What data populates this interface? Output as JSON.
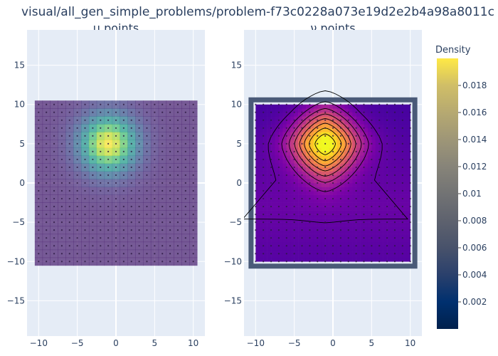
{
  "figure_title": "visual/all_gen_simple_problems/problem-f73c0228a073e19d2e2b4a98a8011c",
  "chart_data": [
    {
      "type": "heatmap",
      "title": "μ points",
      "xlim": [
        -11.5,
        11.5
      ],
      "ylim": [
        -19.5,
        19.5
      ],
      "xticks": [
        -10,
        -5,
        0,
        5,
        10
      ],
      "yticks": [
        -15,
        -10,
        -5,
        0,
        5,
        10,
        15
      ],
      "grid": true,
      "grid_range": [
        -10,
        10
      ],
      "grid_step": 1,
      "peak": {
        "x": -1,
        "y": 5,
        "value": 0.0185,
        "sigma": 2.5
      },
      "opacity": 0.7,
      "sample_points": "integer lattice from -10 to 10 in x and y"
    },
    {
      "type": "heatmap",
      "title": "ν points",
      "xlim": [
        -11.5,
        11.5
      ],
      "ylim": [
        -19.5,
        19.5
      ],
      "xticks": [
        -10,
        -5,
        0,
        5,
        10
      ],
      "yticks": [
        -15,
        -10,
        -5,
        0,
        5,
        10,
        15
      ],
      "grid": true,
      "grid_range": [
        -10,
        10
      ],
      "grid_step": 1,
      "peak": {
        "x": -1,
        "y": 5,
        "value": 0.0185
      },
      "contour_levels": [
        0.0035,
        0.0055,
        0.0075,
        0.0095,
        0.0115,
        0.0135,
        0.0155,
        0.0175
      ],
      "sample_points": "integer lattice from -10 to 10 in x and y"
    }
  ],
  "colorbar": {
    "title": "Density",
    "range": [
      0,
      0.02
    ],
    "ticks": [
      0.002,
      0.004,
      0.006,
      0.008,
      0.01,
      0.012,
      0.014,
      0.016,
      0.018
    ],
    "tick_labels": [
      "0.002",
      "0.004",
      "0.006",
      "0.008",
      "0.01",
      "0.012",
      "0.014",
      "0.016",
      "0.018"
    ],
    "colorscale": "cividis"
  },
  "colors": {
    "plot_bg": "#e5ecf6",
    "grid": "#ffffff",
    "text": "#2a3f5f",
    "border_frame": "#4a5a78",
    "contour_line": "#000000"
  }
}
